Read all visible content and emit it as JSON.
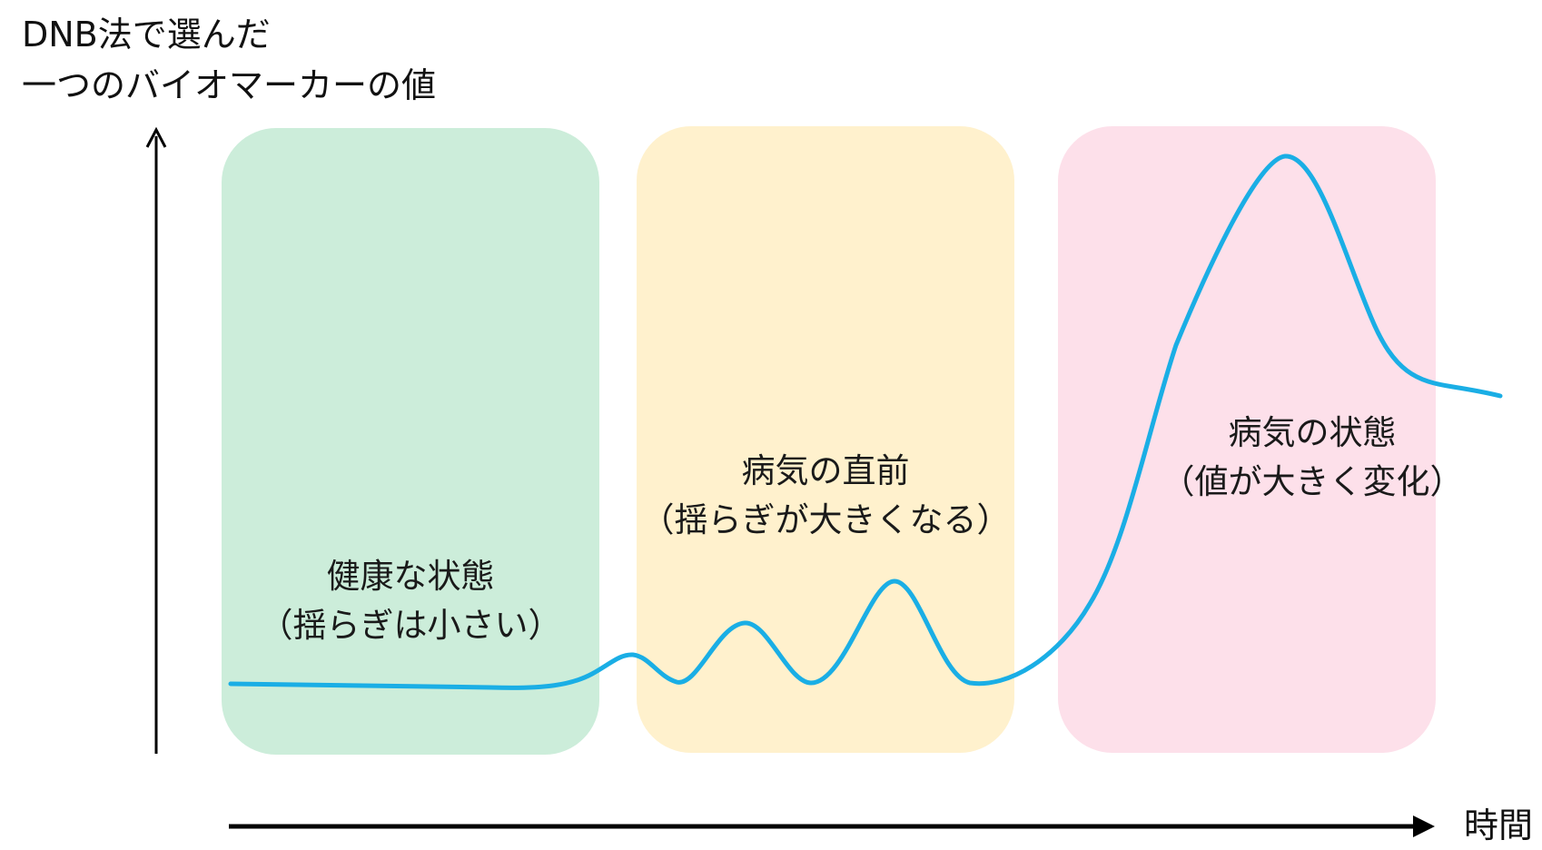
{
  "y_axis_label": {
    "line1": "DNB法で選んだ",
    "line2": "一つのバイオマーカーの値"
  },
  "x_axis_label": "時間",
  "phases": [
    {
      "title": "健康な状態",
      "subtitle": "（揺らぎは小さい）",
      "color": "#ccedda"
    },
    {
      "title": "病気の直前",
      "subtitle": "（揺らぎが大きくなる）",
      "color": "#fff1cd"
    },
    {
      "title": "病気の状態",
      "subtitle": "（値が大きく変化）",
      "color": "#fde0ea"
    }
  ],
  "curve_color": "#1aaee5",
  "axis_color": "#000000"
}
